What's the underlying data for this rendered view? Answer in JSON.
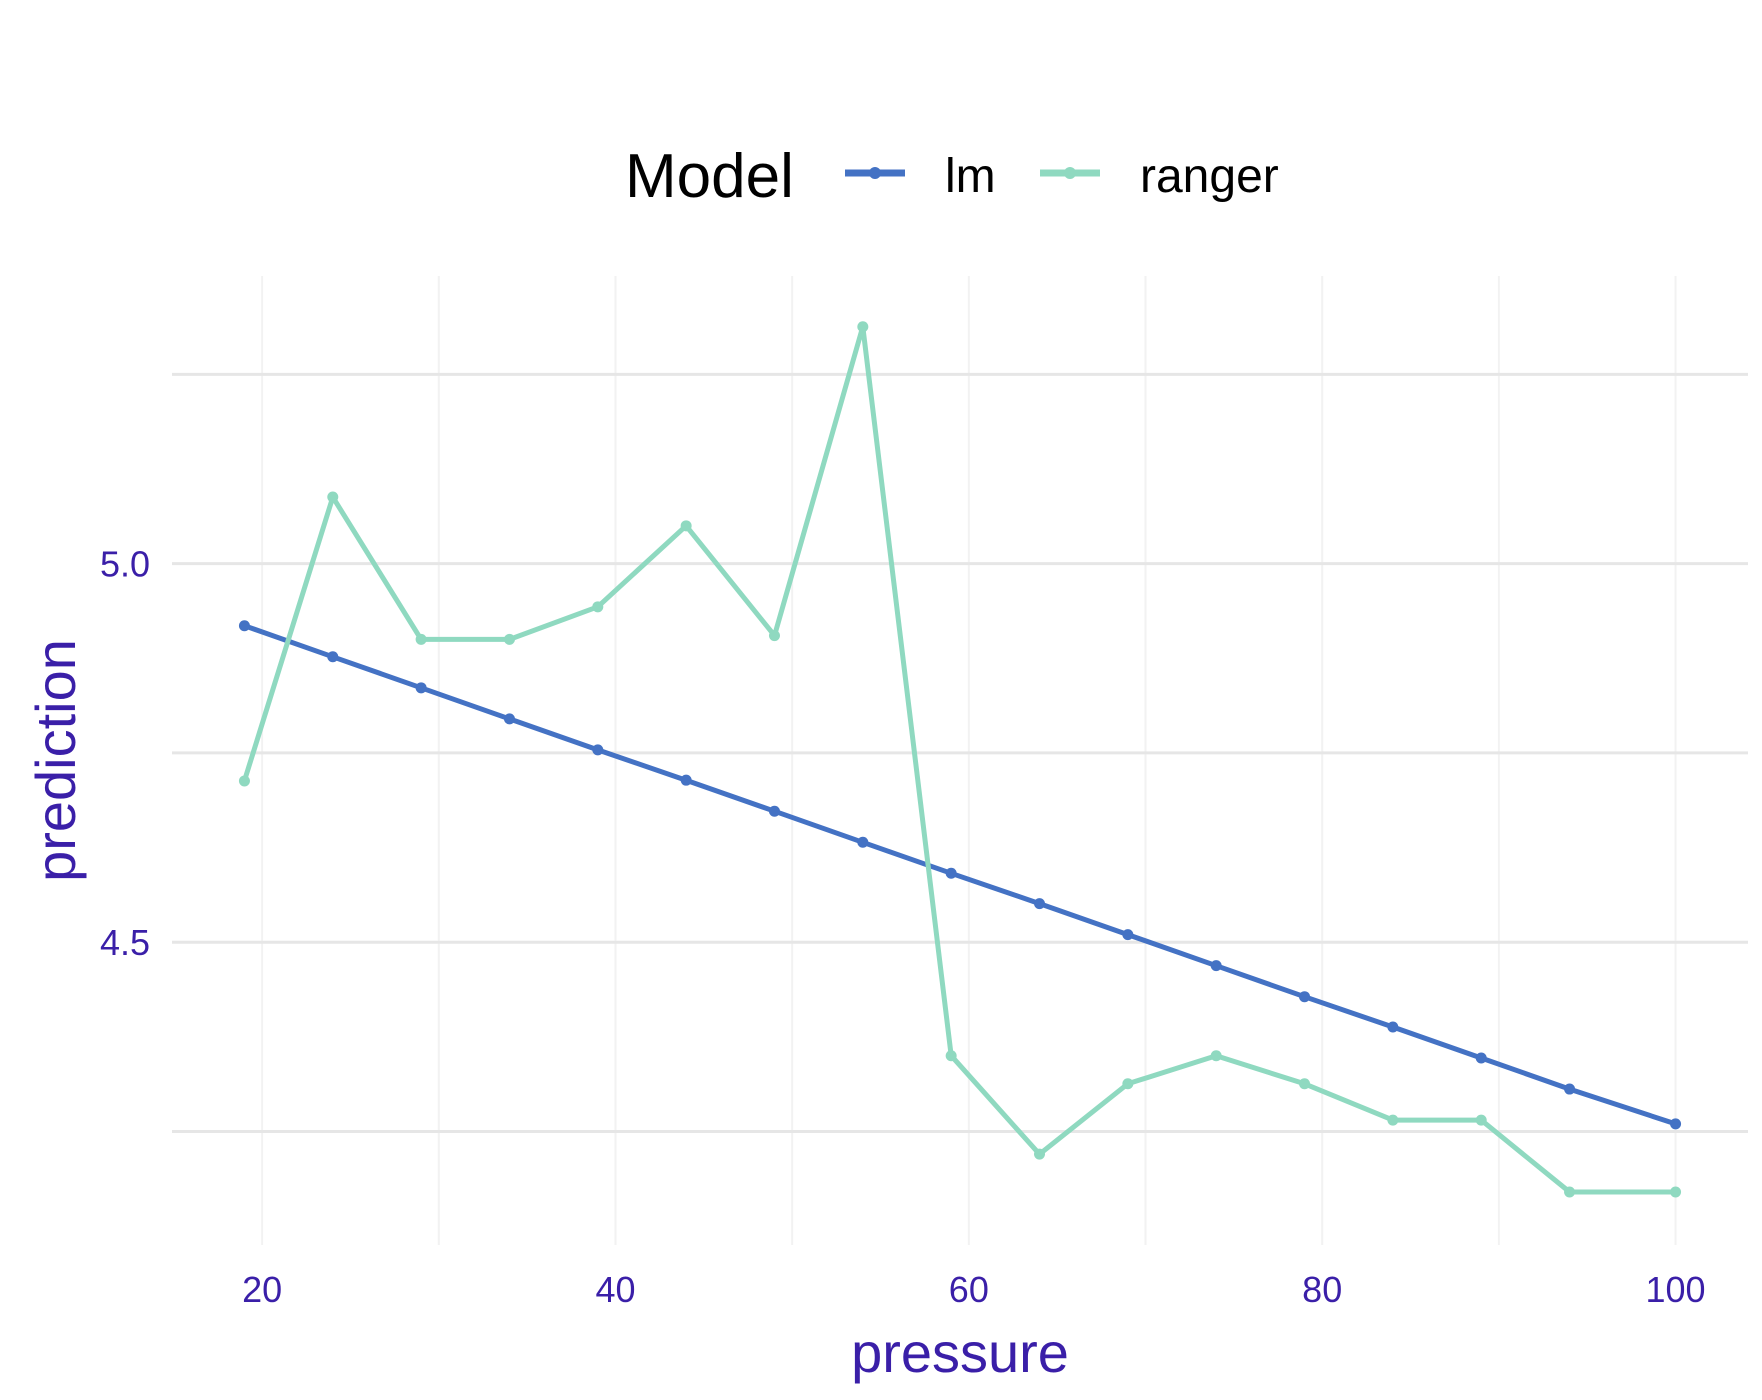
{
  "chart_data": {
    "type": "line",
    "xlabel": "pressure",
    "ylabel": "prediction",
    "xlim": [
      14.9,
      104.1
    ],
    "ylim": [
      4.1,
      5.38
    ],
    "x_ticks": [
      20,
      40,
      60,
      80,
      100
    ],
    "y_ticks": [
      4.5,
      5.0
    ],
    "y_tick_labels": [
      "4.5",
      "5.0"
    ],
    "y_grid_major": [
      4.25,
      4.5,
      4.75,
      5.0,
      5.25
    ],
    "x_grid_minor": [
      30,
      50,
      70,
      90
    ],
    "grid": true,
    "legend": {
      "title": "Model",
      "position": "top"
    },
    "x": [
      19,
      24,
      29,
      34,
      39,
      44,
      49,
      54,
      59,
      64,
      69,
      74,
      79,
      84,
      89,
      94,
      100
    ],
    "series": [
      {
        "name": "lm",
        "color": "#4472C4",
        "values": [
          4.918,
          4.877,
          4.836,
          4.795,
          4.754,
          4.714,
          4.673,
          4.632,
          4.591,
          4.551,
          4.51,
          4.469,
          4.428,
          4.388,
          4.347,
          4.306,
          4.26
        ]
      },
      {
        "name": "ranger",
        "color": "#8FD9C0",
        "values": [
          4.713,
          5.088,
          4.9,
          4.9,
          4.943,
          5.05,
          4.905,
          5.313,
          4.35,
          4.22,
          4.313,
          4.35,
          4.313,
          4.265,
          4.265,
          4.17,
          4.17
        ]
      }
    ],
    "colors": {
      "axis_text": "#3A1FA8",
      "major_grid": "#E6E6E6",
      "minor_grid": "#F2F2F2",
      "legend_text": "#000000"
    }
  }
}
